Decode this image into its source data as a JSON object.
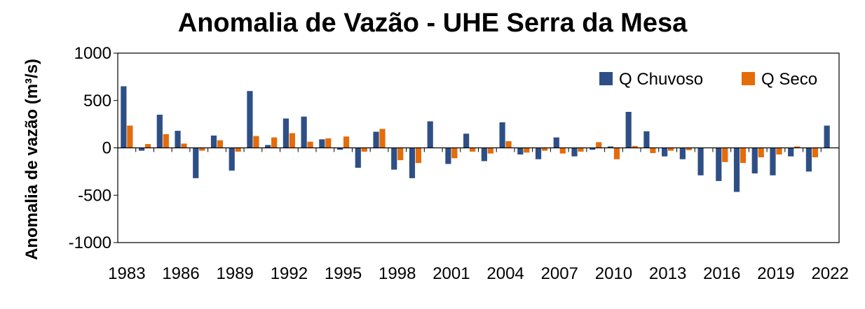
{
  "chart_data": {
    "type": "bar",
    "title": "Anomalia de Vazão - UHE Serra da Mesa",
    "ylabel": "Anomalia de vazão (m³/s)",
    "xlabel": "",
    "ylim": [
      -1000,
      1000
    ],
    "yticks": [
      1000,
      500,
      0,
      -500,
      -1000
    ],
    "grid": false,
    "legend_position": "top-right",
    "categories": [
      "1983",
      "1984",
      "1985",
      "1986",
      "1987",
      "1988",
      "1989",
      "1990",
      "1991",
      "1992",
      "1993",
      "1994",
      "1995",
      "1996",
      "1997",
      "1998",
      "1999",
      "2000",
      "2001",
      "2002",
      "2003",
      "2004",
      "2005",
      "2006",
      "2007",
      "2008",
      "2009",
      "2010",
      "2011",
      "2012",
      "2013",
      "2014",
      "2015",
      "2016",
      "2017",
      "2018",
      "2019",
      "2020",
      "2021",
      "2022"
    ],
    "xtick_labels": [
      "1983",
      "1986",
      "1989",
      "1992",
      "1995",
      "1998",
      "2001",
      "2004",
      "2007",
      "2010",
      "2013",
      "2016",
      "2019",
      "2022"
    ],
    "series": [
      {
        "name": "Q Chuvoso",
        "color": "#2e4f86",
        "values": [
          650,
          -30,
          350,
          180,
          -320,
          130,
          -240,
          600,
          30,
          310,
          330,
          90,
          -20,
          -210,
          170,
          -230,
          -320,
          280,
          -170,
          150,
          -140,
          270,
          -70,
          -120,
          110,
          -90,
          -20,
          15,
          380,
          175,
          -90,
          -120,
          -290,
          -350,
          -465,
          -270,
          -290,
          -90,
          -250,
          235
        ]
      },
      {
        "name": "Q Seco",
        "color": "#e46c0a",
        "values": [
          235,
          40,
          145,
          45,
          -30,
          80,
          -40,
          125,
          110,
          155,
          65,
          100,
          120,
          -40,
          200,
          -130,
          -160,
          0,
          -110,
          -40,
          -60,
          70,
          -50,
          -30,
          -60,
          -40,
          60,
          -120,
          20,
          -55,
          -30,
          -25,
          0,
          -150,
          -160,
          -100,
          -70,
          15,
          -100,
          0
        ]
      }
    ]
  }
}
